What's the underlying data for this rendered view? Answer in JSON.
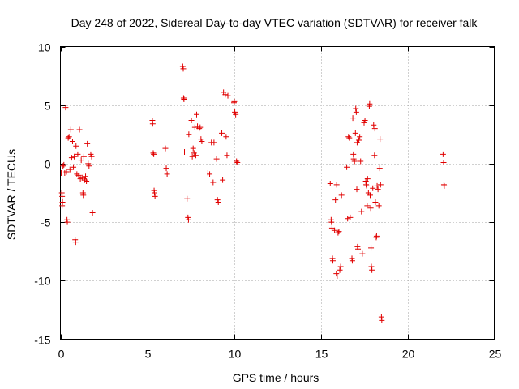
{
  "chart_data": {
    "type": "scatter",
    "title": "Day 248 of 2022, Sidereal Day-to-day VTEC variation (SDTVAR) for receiver falk",
    "xlabel": "GPS time / hours",
    "ylabel": "SDTVAR / TECUs",
    "xlim": [
      0,
      25
    ],
    "ylim": [
      -15,
      10
    ],
    "xticks": [
      0,
      5,
      10,
      15,
      20,
      25
    ],
    "yticks": [
      -15,
      -10,
      -5,
      0,
      5,
      10
    ],
    "grid": true,
    "marker": "plus",
    "color": "#e00000",
    "points": [
      [
        0.05,
        -0.8
      ],
      [
        0.08,
        -2.5
      ],
      [
        0.1,
        -2.8
      ],
      [
        0.12,
        -3.3
      ],
      [
        0.1,
        -3.6
      ],
      [
        0.15,
        -0.2
      ],
      [
        0.2,
        -0.1
      ],
      [
        0.25,
        -0.8
      ],
      [
        0.3,
        4.8
      ],
      [
        0.35,
        -0.7
      ],
      [
        0.4,
        -5.0
      ],
      [
        0.38,
        -4.8
      ],
      [
        0.45,
        2.2
      ],
      [
        0.5,
        2.3
      ],
      [
        0.55,
        -0.5
      ],
      [
        0.6,
        2.9
      ],
      [
        0.65,
        0.5
      ],
      [
        0.7,
        1.9
      ],
      [
        0.75,
        -0.3
      ],
      [
        0.8,
        0.6
      ],
      [
        0.85,
        -6.5
      ],
      [
        0.88,
        -6.7
      ],
      [
        0.9,
        1.5
      ],
      [
        0.95,
        -0.9
      ],
      [
        1.0,
        0.8
      ],
      [
        1.05,
        -1.0
      ],
      [
        1.1,
        2.9
      ],
      [
        1.15,
        -1.3
      ],
      [
        1.2,
        0.3
      ],
      [
        1.25,
        -1.2
      ],
      [
        1.3,
        -2.5
      ],
      [
        1.32,
        -2.7
      ],
      [
        1.35,
        0.6
      ],
      [
        1.4,
        -1.4
      ],
      [
        1.45,
        -1.1
      ],
      [
        1.5,
        -1.5
      ],
      [
        1.55,
        1.7
      ],
      [
        1.6,
        0.0
      ],
      [
        1.65,
        -0.2
      ],
      [
        1.75,
        0.8
      ],
      [
        1.8,
        0.6
      ],
      [
        1.85,
        -4.2
      ],
      [
        5.3,
        3.7
      ],
      [
        5.32,
        3.4
      ],
      [
        5.35,
        0.9
      ],
      [
        5.38,
        0.8
      ],
      [
        5.4,
        -2.3
      ],
      [
        5.42,
        -2.5
      ],
      [
        5.45,
        -2.8
      ],
      [
        6.05,
        1.3
      ],
      [
        6.1,
        -0.4
      ],
      [
        6.15,
        -0.9
      ],
      [
        7.05,
        8.3
      ],
      [
        7.08,
        8.1
      ],
      [
        7.1,
        5.6
      ],
      [
        7.12,
        5.5
      ],
      [
        7.15,
        1.0
      ],
      [
        7.3,
        -3.0
      ],
      [
        7.35,
        -4.6
      ],
      [
        7.38,
        -4.8
      ],
      [
        7.4,
        2.5
      ],
      [
        7.55,
        3.7
      ],
      [
        7.6,
        0.6
      ],
      [
        7.65,
        1.3
      ],
      [
        7.7,
        0.9
      ],
      [
        7.75,
        3.1
      ],
      [
        7.8,
        0.7
      ],
      [
        7.85,
        4.2
      ],
      [
        7.9,
        3.2
      ],
      [
        8.0,
        3.0
      ],
      [
        8.05,
        3.1
      ],
      [
        8.1,
        2.1
      ],
      [
        8.15,
        1.9
      ],
      [
        8.5,
        -0.8
      ],
      [
        8.6,
        -0.9
      ],
      [
        8.7,
        1.8
      ],
      [
        8.8,
        -1.6
      ],
      [
        8.85,
        1.8
      ],
      [
        9.0,
        0.4
      ],
      [
        9.05,
        -3.1
      ],
      [
        9.1,
        -3.3
      ],
      [
        9.3,
        2.6
      ],
      [
        9.35,
        -1.4
      ],
      [
        9.4,
        6.1
      ],
      [
        9.5,
        5.9
      ],
      [
        9.55,
        2.3
      ],
      [
        9.6,
        0.7
      ],
      [
        9.65,
        5.8
      ],
      [
        10.0,
        5.2
      ],
      [
        10.02,
        5.3
      ],
      [
        10.05,
        4.4
      ],
      [
        10.1,
        4.2
      ],
      [
        10.15,
        0.2
      ],
      [
        10.2,
        0.1
      ],
      [
        15.55,
        -1.7
      ],
      [
        15.6,
        -4.8
      ],
      [
        15.62,
        -5.0
      ],
      [
        15.65,
        -5.5
      ],
      [
        15.68,
        -8.1
      ],
      [
        15.7,
        -8.3
      ],
      [
        15.8,
        -5.7
      ],
      [
        15.85,
        -3.1
      ],
      [
        15.9,
        -9.4
      ],
      [
        15.95,
        -9.6
      ],
      [
        15.92,
        -1.8
      ],
      [
        16.0,
        -5.9
      ],
      [
        16.05,
        -5.8
      ],
      [
        16.1,
        -9.1
      ],
      [
        16.15,
        -8.8
      ],
      [
        16.2,
        -2.7
      ],
      [
        16.5,
        -0.3
      ],
      [
        16.55,
        -4.7
      ],
      [
        16.6,
        2.3
      ],
      [
        16.65,
        2.2
      ],
      [
        16.7,
        -4.6
      ],
      [
        16.8,
        -8.1
      ],
      [
        16.82,
        -8.3
      ],
      [
        16.85,
        3.9
      ],
      [
        16.88,
        0.8
      ],
      [
        16.9,
        0.4
      ],
      [
        16.95,
        0.2
      ],
      [
        17.0,
        2.6
      ],
      [
        17.02,
        4.7
      ],
      [
        17.05,
        4.4
      ],
      [
        17.08,
        -2.2
      ],
      [
        17.1,
        1.8
      ],
      [
        17.12,
        -7.1
      ],
      [
        17.15,
        -7.3
      ],
      [
        17.2,
        2.0
      ],
      [
        17.25,
        2.3
      ],
      [
        17.3,
        0.2
      ],
      [
        17.35,
        -4.1
      ],
      [
        17.4,
        -7.7
      ],
      [
        17.5,
        3.5
      ],
      [
        17.55,
        3.7
      ],
      [
        17.6,
        -1.5
      ],
      [
        17.62,
        -1.8
      ],
      [
        17.65,
        -1.9
      ],
      [
        17.68,
        -3.6
      ],
      [
        17.7,
        -1.3
      ],
      [
        17.75,
        -2.5
      ],
      [
        17.8,
        4.9
      ],
      [
        17.82,
        5.1
      ],
      [
        17.85,
        -2.7
      ],
      [
        17.88,
        -3.8
      ],
      [
        17.9,
        -7.2
      ],
      [
        17.92,
        -8.8
      ],
      [
        17.95,
        -9.1
      ],
      [
        18.0,
        -2.1
      ],
      [
        18.05,
        3.3
      ],
      [
        18.1,
        0.7
      ],
      [
        18.12,
        3.0
      ],
      [
        18.15,
        -3.3
      ],
      [
        18.2,
        -6.3
      ],
      [
        18.22,
        -6.2
      ],
      [
        18.25,
        -1.9
      ],
      [
        18.3,
        -2.2
      ],
      [
        18.35,
        -3.6
      ],
      [
        18.4,
        -0.4
      ],
      [
        18.42,
        2.1
      ],
      [
        18.45,
        -1.8
      ],
      [
        18.5,
        -13.1
      ],
      [
        18.52,
        -13.4
      ],
      [
        22.05,
        0.8
      ],
      [
        22.08,
        0.1
      ],
      [
        22.1,
        -1.8
      ],
      [
        22.12,
        -1.9
      ]
    ]
  }
}
